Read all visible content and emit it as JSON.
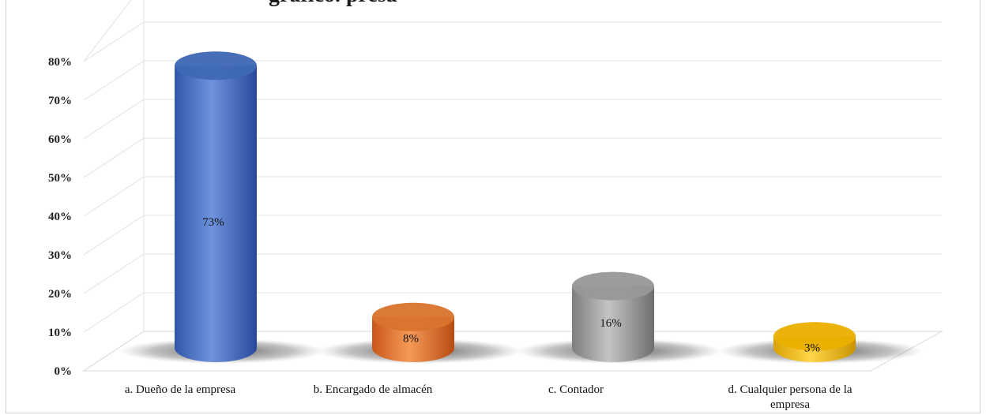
{
  "title_fragment": "gráfico.  presa",
  "chart_data": {
    "type": "bar",
    "style": "3d-cylinder",
    "categories": [
      "a. Dueño de la empresa",
      "b. Encargado de almacén",
      "c. Contador",
      "d. Cualquier persona de la empresa"
    ],
    "series": [
      {
        "values": [
          73,
          8,
          16,
          3
        ]
      }
    ],
    "data_labels": [
      "73%",
      "8%",
      "16%",
      "3%"
    ],
    "colors": [
      "#4472c4",
      "#ed7d31",
      "#a5a5a5",
      "#ffc000"
    ],
    "ylim": [
      0,
      80
    ],
    "yticks": [
      "0%",
      "10%",
      "20%",
      "30%",
      "40%",
      "50%",
      "60%",
      "70%",
      "80%"
    ],
    "grid": true,
    "legend": "none"
  }
}
